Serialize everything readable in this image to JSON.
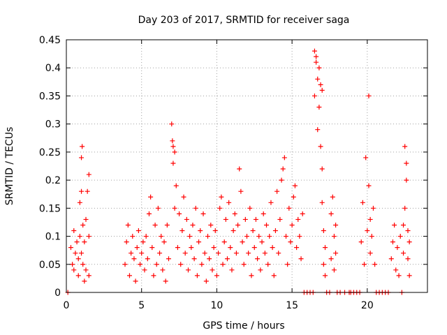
{
  "chart_data": {
    "type": "scatter",
    "title": "Day 203 of 2017, SRMTID for receiver saga",
    "xlabel": "GPS time / hours",
    "ylabel": "SRMTID / TECUs",
    "xlim": [
      0,
      24
    ],
    "ylim": [
      0,
      0.45
    ],
    "xticks": [
      0,
      5,
      10,
      15,
      20
    ],
    "xtick_labels": [
      "0",
      "5",
      "10",
      "15",
      "20"
    ],
    "yticks": [
      0,
      0.05,
      0.1,
      0.15,
      0.2,
      0.25,
      0.3,
      0.35,
      0.4,
      0.45
    ],
    "ytick_labels": [
      "0",
      "0.05",
      "0.1",
      "0.15",
      "0.2",
      "0.25",
      "0.3",
      "0.35",
      "0.4",
      "0.45"
    ],
    "grid": true,
    "marker": "+",
    "marker_color": "#ff0000",
    "series": [
      {
        "name": "SRMTID",
        "points": [
          [
            0.1,
            0.0
          ],
          [
            0.3,
            0.08
          ],
          [
            0.4,
            0.05
          ],
          [
            0.5,
            0.11
          ],
          [
            0.5,
            0.04
          ],
          [
            0.6,
            0.07
          ],
          [
            0.7,
            0.09
          ],
          [
            0.8,
            0.03
          ],
          [
            0.8,
            0.06
          ],
          [
            0.9,
            0.1
          ],
          [
            0.9,
            0.16
          ],
          [
            1.0,
            0.24
          ],
          [
            1.0,
            0.18
          ],
          [
            1.0,
            0.07
          ],
          [
            1.05,
            0.26
          ],
          [
            1.1,
            0.12
          ],
          [
            1.1,
            0.05
          ],
          [
            1.2,
            0.09
          ],
          [
            1.2,
            0.02
          ],
          [
            1.3,
            0.13
          ],
          [
            1.3,
            0.04
          ],
          [
            1.4,
            0.18
          ],
          [
            1.5,
            0.21
          ],
          [
            1.5,
            0.03
          ],
          [
            1.5,
            0.1
          ],
          [
            3.9,
            0.05
          ],
          [
            4.0,
            0.09
          ],
          [
            4.1,
            0.12
          ],
          [
            4.2,
            0.03
          ],
          [
            4.3,
            0.07
          ],
          [
            4.4,
            0.1
          ],
          [
            4.5,
            0.06
          ],
          [
            4.6,
            0.02
          ],
          [
            4.7,
            0.08
          ],
          [
            4.8,
            0.11
          ],
          [
            4.9,
            0.05
          ],
          [
            5.0,
            0.07
          ],
          [
            5.1,
            0.09
          ],
          [
            5.2,
            0.04
          ],
          [
            5.3,
            0.1
          ],
          [
            5.4,
            0.06
          ],
          [
            5.5,
            0.14
          ],
          [
            5.6,
            0.17
          ],
          [
            5.7,
            0.08
          ],
          [
            5.8,
            0.03
          ],
          [
            5.9,
            0.12
          ],
          [
            6.0,
            0.05
          ],
          [
            6.1,
            0.15
          ],
          [
            6.2,
            0.07
          ],
          [
            6.3,
            0.1
          ],
          [
            6.4,
            0.04
          ],
          [
            6.5,
            0.09
          ],
          [
            6.6,
            0.02
          ],
          [
            6.7,
            0.12
          ],
          [
            6.8,
            0.06
          ],
          [
            7.0,
            0.3
          ],
          [
            7.05,
            0.27
          ],
          [
            7.1,
            0.26
          ],
          [
            7.1,
            0.23
          ],
          [
            7.2,
            0.25
          ],
          [
            7.2,
            0.15
          ],
          [
            7.3,
            0.19
          ],
          [
            7.4,
            0.08
          ],
          [
            7.5,
            0.14
          ],
          [
            7.6,
            0.05
          ],
          [
            7.7,
            0.11
          ],
          [
            7.8,
            0.17
          ],
          [
            7.9,
            0.07
          ],
          [
            8.0,
            0.13
          ],
          [
            8.1,
            0.04
          ],
          [
            8.2,
            0.1
          ],
          [
            8.3,
            0.08
          ],
          [
            8.4,
            0.12
          ],
          [
            8.5,
            0.06
          ],
          [
            8.6,
            0.15
          ],
          [
            8.7,
            0.03
          ],
          [
            8.8,
            0.09
          ],
          [
            8.9,
            0.11
          ],
          [
            9.0,
            0.05
          ],
          [
            9.1,
            0.14
          ],
          [
            9.2,
            0.07
          ],
          [
            9.3,
            0.02
          ],
          [
            9.4,
            0.1
          ],
          [
            9.5,
            0.06
          ],
          [
            9.6,
            0.12
          ],
          [
            9.7,
            0.04
          ],
          [
            9.8,
            0.08
          ],
          [
            9.9,
            0.11
          ],
          [
            10.0,
            0.03
          ],
          [
            10.1,
            0.07
          ],
          [
            10.2,
            0.15
          ],
          [
            10.3,
            0.17
          ],
          [
            10.4,
            0.05
          ],
          [
            10.5,
            0.09
          ],
          [
            10.6,
            0.13
          ],
          [
            10.7,
            0.06
          ],
          [
            10.8,
            0.16
          ],
          [
            10.9,
            0.08
          ],
          [
            11.0,
            0.04
          ],
          [
            11.1,
            0.11
          ],
          [
            11.2,
            0.14
          ],
          [
            11.3,
            0.07
          ],
          [
            11.4,
            0.12
          ],
          [
            11.5,
            0.22
          ],
          [
            11.6,
            0.18
          ],
          [
            11.7,
            0.09
          ],
          [
            11.8,
            0.05
          ],
          [
            11.9,
            0.13
          ],
          [
            12.0,
            0.1
          ],
          [
            12.1,
            0.07
          ],
          [
            12.2,
            0.15
          ],
          [
            12.3,
            0.03
          ],
          [
            12.4,
            0.11
          ],
          [
            12.5,
            0.08
          ],
          [
            12.6,
            0.13
          ],
          [
            12.7,
            0.06
          ],
          [
            12.8,
            0.1
          ],
          [
            12.9,
            0.04
          ],
          [
            13.0,
            0.09
          ],
          [
            13.1,
            0.14
          ],
          [
            13.2,
            0.07
          ],
          [
            13.3,
            0.12
          ],
          [
            13.4,
            0.05
          ],
          [
            13.5,
            0.1
          ],
          [
            13.6,
            0.16
          ],
          [
            13.7,
            0.08
          ],
          [
            13.8,
            0.03
          ],
          [
            13.9,
            0.11
          ],
          [
            14.0,
            0.18
          ],
          [
            14.1,
            0.07
          ],
          [
            14.2,
            0.13
          ],
          [
            14.3,
            0.2
          ],
          [
            14.4,
            0.22
          ],
          [
            14.5,
            0.24
          ],
          [
            14.6,
            0.1
          ],
          [
            14.7,
            0.05
          ],
          [
            14.8,
            0.15
          ],
          [
            14.9,
            0.09
          ],
          [
            15.0,
            0.12
          ],
          [
            15.1,
            0.17
          ],
          [
            15.2,
            0.19
          ],
          [
            15.3,
            0.08
          ],
          [
            15.4,
            0.13
          ],
          [
            15.5,
            0.1
          ],
          [
            15.6,
            0.06
          ],
          [
            15.7,
            0.14
          ],
          [
            15.8,
            0.0
          ],
          [
            16.0,
            0.0
          ],
          [
            16.2,
            0.0
          ],
          [
            16.4,
            0.0
          ],
          [
            16.5,
            0.35
          ],
          [
            16.5,
            0.43
          ],
          [
            16.6,
            0.42
          ],
          [
            16.6,
            0.41
          ],
          [
            16.7,
            0.38
          ],
          [
            16.7,
            0.29
          ],
          [
            16.8,
            0.4
          ],
          [
            16.8,
            0.33
          ],
          [
            16.9,
            0.37
          ],
          [
            16.9,
            0.26
          ],
          [
            17.0,
            0.36
          ],
          [
            17.0,
            0.22
          ],
          [
            17.0,
            0.16
          ],
          [
            17.1,
            0.11
          ],
          [
            17.1,
            0.05
          ],
          [
            17.2,
            0.08
          ],
          [
            17.2,
            0.03
          ],
          [
            17.3,
            0.0
          ],
          [
            17.5,
            0.0
          ],
          [
            17.6,
            0.06
          ],
          [
            17.6,
            0.14
          ],
          [
            17.7,
            0.17
          ],
          [
            17.8,
            0.1
          ],
          [
            17.8,
            0.04
          ],
          [
            17.9,
            0.12
          ],
          [
            17.9,
            0.07
          ],
          [
            18.0,
            0.0
          ],
          [
            18.2,
            0.0
          ],
          [
            18.5,
            0.0
          ],
          [
            18.8,
            0.0
          ],
          [
            18.9,
            0.0
          ],
          [
            19.1,
            0.0
          ],
          [
            19.3,
            0.0
          ],
          [
            19.5,
            0.0
          ],
          [
            19.6,
            0.09
          ],
          [
            19.7,
            0.16
          ],
          [
            19.8,
            0.05
          ],
          [
            19.9,
            0.24
          ],
          [
            20.0,
            0.11
          ],
          [
            20.1,
            0.35
          ],
          [
            20.1,
            0.19
          ],
          [
            20.2,
            0.13
          ],
          [
            20.2,
            0.07
          ],
          [
            20.3,
            0.1
          ],
          [
            20.4,
            0.15
          ],
          [
            20.5,
            0.05
          ],
          [
            20.6,
            0.0
          ],
          [
            20.8,
            0.0
          ],
          [
            21.0,
            0.0
          ],
          [
            21.2,
            0.0
          ],
          [
            21.4,
            0.0
          ],
          [
            21.6,
            0.06
          ],
          [
            21.7,
            0.09
          ],
          [
            21.8,
            0.12
          ],
          [
            21.9,
            0.04
          ],
          [
            22.0,
            0.08
          ],
          [
            22.1,
            0.03
          ],
          [
            22.2,
            0.1
          ],
          [
            22.3,
            0.0
          ],
          [
            22.4,
            0.12
          ],
          [
            22.4,
            0.07
          ],
          [
            22.5,
            0.15
          ],
          [
            22.5,
            0.26
          ],
          [
            22.6,
            0.23
          ],
          [
            22.6,
            0.2
          ],
          [
            22.7,
            0.11
          ],
          [
            22.7,
            0.06
          ],
          [
            22.8,
            0.09
          ],
          [
            22.8,
            0.03
          ]
        ]
      }
    ]
  }
}
